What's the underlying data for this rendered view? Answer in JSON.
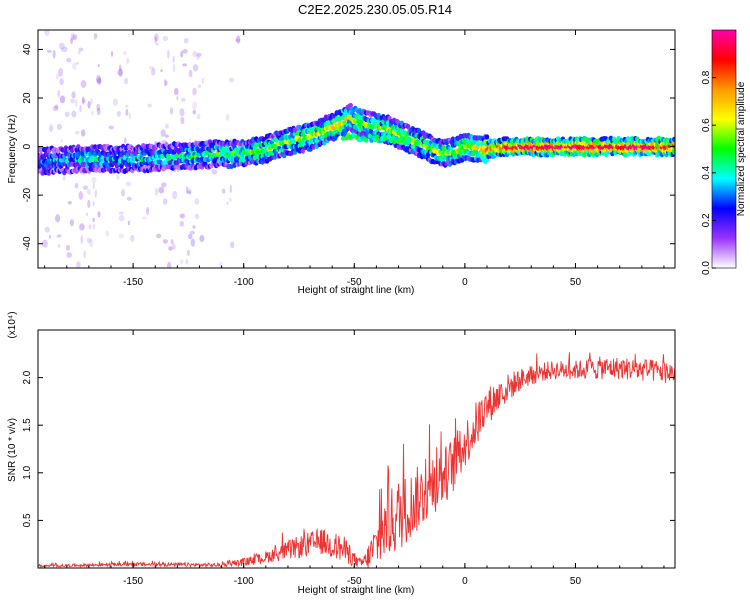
{
  "title": "C2E2.2025.230.05.05.R14",
  "chart_data": [
    {
      "type": "heatmap",
      "title": "C2E2.2025.230.05.05.R14",
      "xlabel": "Height of straight line (km)",
      "ylabel": "Frequency (Hz)",
      "xlim": [
        -193,
        95
      ],
      "ylim": [
        -50,
        48
      ],
      "xticks": [
        -150,
        -100,
        -50,
        0,
        50
      ],
      "yticks": [
        -40,
        -20,
        0,
        20,
        40
      ],
      "colorbar": {
        "label": "Normalized spectral amplitude",
        "range": [
          0,
          1
        ],
        "ticks": [
          0.0,
          0.2,
          0.4,
          0.6,
          0.8
        ],
        "tick_labels": [
          "0.0",
          "0.2",
          "0.4",
          "0.6",
          "0.8"
        ],
        "colormap": [
          "#ffffff",
          "#9933ff",
          "#0000ff",
          "#00ffff",
          "#00ff00",
          "#ffff00",
          "#ff9900",
          "#ff0000",
          "#ff00aa"
        ]
      },
      "ridge": {
        "x": [
          -193,
          -170,
          -150,
          -130,
          -110,
          -100,
          -90,
          -80,
          -70,
          -60,
          -55,
          -52,
          -48,
          -40,
          -35,
          -30,
          -25,
          -20,
          -15,
          -10,
          -5,
          0,
          10,
          20,
          40,
          60,
          80,
          95
        ],
        "y": [
          -6,
          -5,
          -5,
          -4,
          -3,
          -3,
          -1,
          2,
          4,
          8,
          10,
          12,
          10,
          8,
          7,
          5,
          3,
          1,
          -1,
          -3,
          -2,
          0,
          -1,
          0,
          0,
          0,
          0,
          0
        ],
        "amplitude": [
          0.3,
          0.35,
          0.35,
          0.4,
          0.45,
          0.45,
          0.5,
          0.5,
          0.55,
          0.6,
          0.65,
          0.6,
          0.55,
          0.5,
          0.55,
          0.55,
          0.5,
          0.5,
          0.5,
          0.55,
          0.55,
          0.6,
          0.7,
          0.9,
          0.95,
          0.95,
          0.9,
          0.9
        ]
      }
    },
    {
      "type": "line",
      "xlabel": "Height of straight line (km)",
      "ylabel": "SNR (10 * v/v)",
      "y_multiplier": "(x10⁴)",
      "xlim": [
        -193,
        95
      ],
      "ylim": [
        0,
        2.5
      ],
      "xticks": [
        -150,
        -100,
        -50,
        0,
        50
      ],
      "yticks": [
        0.5,
        1.0,
        1.5,
        2.0
      ],
      "ytick_labels": [
        "0.5",
        "1.0",
        "1.5",
        "2.0"
      ],
      "color": "#ee3333",
      "series": [
        {
          "x": [
            -193,
            -150,
            -110,
            -95,
            -85,
            -75,
            -65,
            -55,
            -48,
            -45,
            -40,
            -35,
            -30,
            -25,
            -20,
            -15,
            -10,
            -5,
            0,
            5,
            10,
            15,
            20,
            25,
            30,
            35,
            40,
            50,
            60,
            70,
            80,
            95
          ],
          "y": [
            0.02,
            0.04,
            0.03,
            0.08,
            0.15,
            0.22,
            0.28,
            0.2,
            0.05,
            0.07,
            0.25,
            0.45,
            0.55,
            0.65,
            0.75,
            0.85,
            0.95,
            1.1,
            1.3,
            1.5,
            1.7,
            1.8,
            1.9,
            1.98,
            2.02,
            2.06,
            2.08,
            2.08,
            2.1,
            2.1,
            2.08,
            2.05
          ],
          "noise": [
            0.01,
            0.02,
            0.02,
            0.05,
            0.08,
            0.12,
            0.14,
            0.15,
            0.05,
            0.1,
            0.25,
            0.35,
            0.4,
            0.35,
            0.35,
            0.3,
            0.3,
            0.3,
            0.25,
            0.25,
            0.2,
            0.18,
            0.15,
            0.12,
            0.1,
            0.1,
            0.1,
            0.1,
            0.12,
            0.12,
            0.12,
            0.12
          ]
        }
      ]
    }
  ]
}
